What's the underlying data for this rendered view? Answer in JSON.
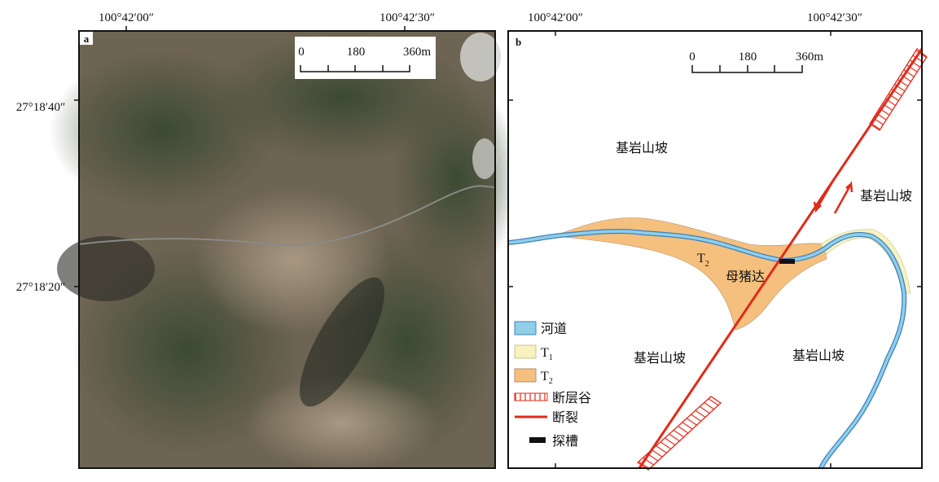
{
  "coords": {
    "lon": [
      "100°42′00″",
      "100°42′30″"
    ],
    "lat": [
      "27°18′40″",
      "27°18′20″"
    ]
  },
  "panel_a": {
    "label": "a",
    "scale": [
      "0",
      "180",
      "360m"
    ]
  },
  "panel_b": {
    "label": "b",
    "scale": [
      "0",
      "180",
      "360m"
    ],
    "labels": {
      "slope_nw": "基岩山坡",
      "slope_ne": "基岩山坡",
      "slope_sw": "基岩山坡",
      "slope_se": "基岩山坡",
      "terrace": {
        "main": "T",
        "sub": "2"
      },
      "place": "母猪达"
    },
    "legend": [
      {
        "text": "河道"
      },
      {
        "main": "T",
        "sub": "1"
      },
      {
        "main": "T",
        "sub": "2"
      },
      {
        "text": "断层谷"
      },
      {
        "text": "断裂"
      },
      {
        "text": "探槽"
      }
    ]
  }
}
